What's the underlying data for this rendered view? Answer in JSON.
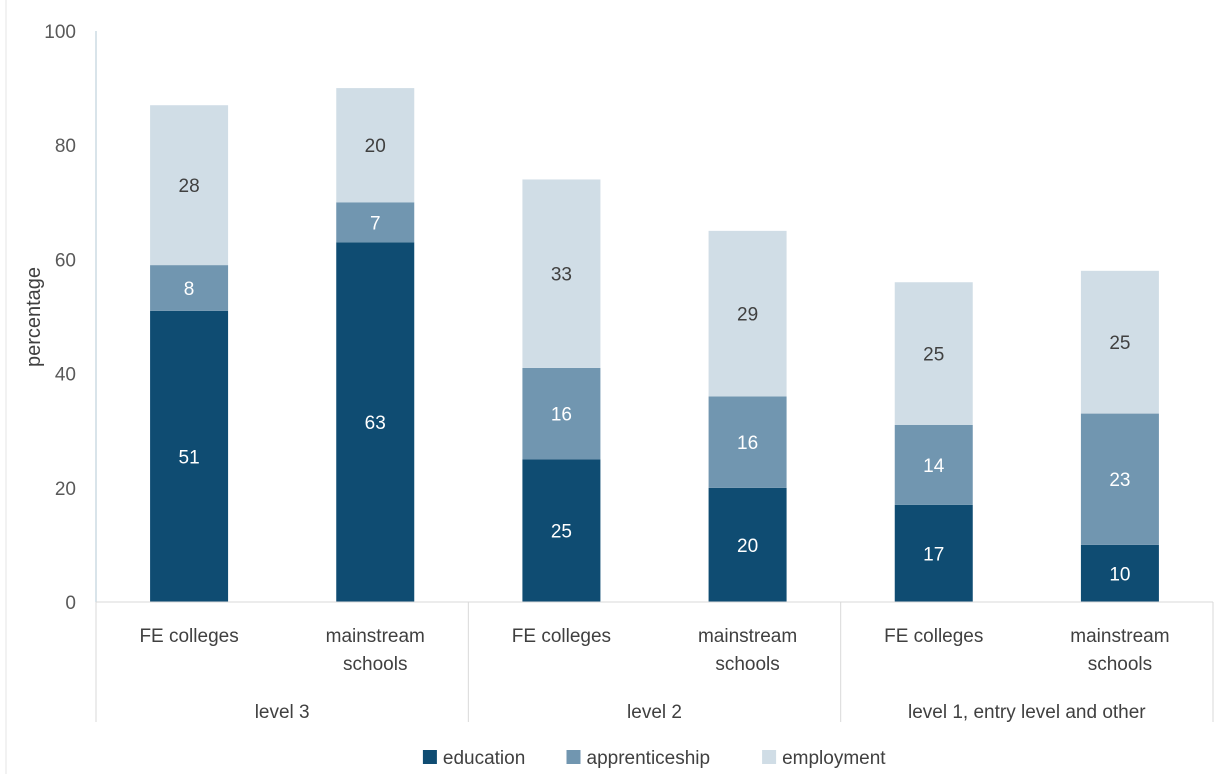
{
  "chart_data": {
    "type": "bar",
    "stacked": true,
    "title": "",
    "xlabel": "",
    "ylabel": "percentage",
    "ylim": [
      0,
      100
    ],
    "yticks": [
      0,
      20,
      40,
      60,
      80,
      100
    ],
    "grid": false,
    "legend_position": "bottom",
    "groups": [
      "level 3",
      "level 2",
      "level 1, entry level and other"
    ],
    "categories": [
      "FE colleges",
      "mainstream schools",
      "FE colleges",
      "mainstream schools",
      "FE colleges",
      "mainstream schools"
    ],
    "category_group": [
      0,
      0,
      1,
      1,
      2,
      2
    ],
    "series": [
      {
        "name": "education",
        "color": "#0f4c72",
        "label_color": "#ffffff",
        "values": [
          51,
          63,
          25,
          20,
          17,
          10
        ]
      },
      {
        "name": "apprenticeship",
        "color": "#7196b0",
        "label_color": "#ffffff",
        "values": [
          8,
          7,
          16,
          16,
          14,
          23
        ]
      },
      {
        "name": "employment",
        "color": "#d0dde6",
        "label_color": "#404040",
        "values": [
          28,
          20,
          33,
          29,
          25,
          25
        ]
      }
    ]
  }
}
